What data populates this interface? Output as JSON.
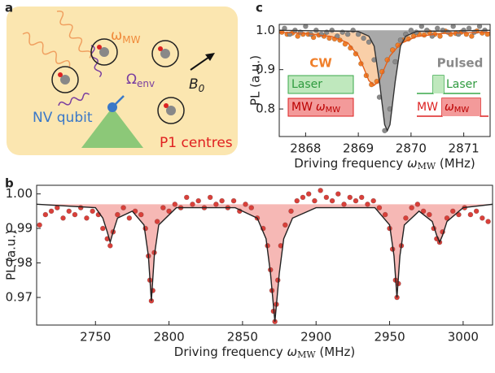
{
  "panel_labels": [
    "a",
    "b",
    "c"
  ],
  "diagram": {
    "mw_symbol": "ω",
    "mw_sub": "MW",
    "env_symbol": "Ω",
    "env_sub": "env",
    "field_symbol": "B",
    "field_sub": "0",
    "nv_label": "NV qubit",
    "p1_label": "P1 centres"
  },
  "chart_data": [
    {
      "type": "scatter",
      "y_label": "PL (a.u.)",
      "x_label": {
        "text": "Driving frequency ",
        "symbol": "ω",
        "sub": "MW",
        "unit": " (MHz)"
      },
      "xlim": [
        2867.5,
        2871.5
      ],
      "ylim": [
        0.73,
        1.015
      ],
      "xticks": [
        2868,
        2869,
        2870,
        2871
      ],
      "yticks": [
        0.8,
        0.9,
        {
          "value": 1,
          "label": "1.0"
        }
      ],
      "insets": [
        {
          "laser": "Laser",
          "mw": "MW",
          "symbol": "ω",
          "sub": "MW"
        },
        {
          "laser": "Laser",
          "mw": "MW",
          "symbol": "ω",
          "sub": "MW"
        }
      ],
      "series": [
        {
          "name": "CW",
          "color": "#f07f2a",
          "x": [
            2867.55,
            2867.65,
            2867.75,
            2867.85,
            2867.95,
            2868.05,
            2868.15,
            2868.25,
            2868.35,
            2868.45,
            2868.55,
            2868.65,
            2868.75,
            2868.85,
            2868.95,
            2869.05,
            2869.15,
            2869.25,
            2869.35,
            2869.45,
            2869.55,
            2869.65,
            2869.75,
            2869.85,
            2869.95,
            2870.05,
            2870.15,
            2870.25,
            2870.35,
            2870.45,
            2870.55,
            2870.65,
            2870.75,
            2870.85,
            2870.95,
            2871.05,
            2871.15,
            2871.25,
            2871.35,
            2871.45
          ],
          "values": [
            0.995,
            0.99,
            0.993,
            0.985,
            0.99,
            0.99,
            0.982,
            0.988,
            0.985,
            0.98,
            0.978,
            0.975,
            0.965,
            0.955,
            0.94,
            0.915,
            0.885,
            0.862,
            0.87,
            0.895,
            0.925,
            0.95,
            0.962,
            0.975,
            0.978,
            0.985,
            0.99,
            0.988,
            0.995,
            0.99,
            0.985,
            0.998,
            0.99,
            0.992,
            0.995,
            0.99,
            0.985,
            0.998,
            0.993,
            0.99
          ],
          "fit": {
            "color": "#e4601a",
            "fill_color": "#f9cfa8",
            "x": [
              2867.5,
              2868.0,
              2868.5,
              2868.8,
              2869.0,
              2869.1,
              2869.2,
              2869.3,
              2869.4,
              2869.5,
              2869.6,
              2869.8,
              2870.1,
              2870.6,
              2871.5
            ],
            "values": [
              0.995,
              0.992,
              0.984,
              0.968,
              0.935,
              0.905,
              0.872,
              0.86,
              0.872,
              0.905,
              0.935,
              0.966,
              0.984,
              0.992,
              0.995
            ]
          }
        },
        {
          "name": "Pulsed",
          "color": "#8a8a8a",
          "x": [
            2867.6,
            2867.7,
            2867.8,
            2867.9,
            2868.0,
            2868.1,
            2868.2,
            2868.3,
            2868.4,
            2868.5,
            2868.6,
            2868.7,
            2868.8,
            2868.9,
            2869.0,
            2869.1,
            2869.2,
            2869.3,
            2869.4,
            2869.5,
            2869.6,
            2869.7,
            2869.8,
            2869.9,
            2870.0,
            2870.1,
            2870.2,
            2870.3,
            2870.4,
            2870.5,
            2870.6,
            2870.7,
            2870.8,
            2870.9,
            2871.0,
            2871.1,
            2871.2,
            2871.3,
            2871.4
          ],
          "values": [
            1.005,
            0.99,
            1.0,
            0.995,
            1.01,
            0.99,
            1.0,
            0.99,
            0.995,
            1.0,
            0.985,
            0.995,
            0.99,
            1.0,
            0.99,
            0.98,
            0.97,
            0.925,
            0.83,
            0.745,
            0.8,
            0.92,
            0.975,
            0.99,
            1.0,
            0.995,
            1.01,
            1.0,
            0.985,
            1.005,
            1.0,
            0.995,
            1.01,
            0.99,
            1.0,
            1.005,
            0.995,
            1.01,
            1.0
          ],
          "fit": {
            "color": "#333333",
            "fill_color": "#a9a9a9",
            "x": [
              2867.5,
              2869.0,
              2869.2,
              2869.3,
              2869.4,
              2869.5,
              2869.55,
              2869.6,
              2869.7,
              2869.8,
              2869.9,
              2870.1,
              2871.5
            ],
            "values": [
              1.0,
              0.997,
              0.985,
              0.96,
              0.87,
              0.76,
              0.745,
              0.76,
              0.87,
              0.96,
              0.985,
              0.997,
              1.0
            ]
          }
        }
      ]
    },
    {
      "type": "scatter",
      "y_label": "PL (a.u.)",
      "x_label": {
        "text": "Driving frequency ",
        "symbol": "ω",
        "sub": "MW",
        "unit": " (MHz)"
      },
      "xlim": [
        2710,
        3020
      ],
      "ylim": [
        0.962,
        1.0025
      ],
      "xticks": [
        2750,
        2800,
        2850,
        2900,
        2950,
        3000
      ],
      "yticks": [
        0.97,
        0.98,
        0.99,
        {
          "value": 1,
          "label": "1.00"
        }
      ],
      "series": [
        {
          "color": "#d9403a",
          "x": [
            2712,
            2716,
            2720,
            2724,
            2728,
            2732,
            2736,
            2740,
            2744,
            2748,
            2752,
            2755,
            2758,
            2760,
            2762,
            2765,
            2769,
            2773,
            2777,
            2781,
            2784,
            2786,
            2787,
            2788,
            2789,
            2790,
            2792,
            2796,
            2800,
            2804,
            2808,
            2812,
            2816,
            2820,
            2824,
            2828,
            2832,
            2836,
            2840,
            2844,
            2848,
            2852,
            2856,
            2860,
            2864,
            2867,
            2869,
            2870,
            2871,
            2872,
            2873,
            2874,
            2876,
            2879,
            2883,
            2887,
            2891,
            2895,
            2899,
            2903,
            2907,
            2911,
            2915,
            2919,
            2923,
            2927,
            2931,
            2935,
            2939,
            2943,
            2947,
            2950,
            2952,
            2954,
            2955,
            2956,
            2958,
            2961,
            2965,
            2969,
            2973,
            2977,
            2980,
            2982,
            2984,
            2986,
            2989,
            2993,
            2997,
            3001,
            3005,
            3009,
            3013,
            3017
          ],
          "values": [
            0.991,
            0.994,
            0.995,
            0.996,
            0.993,
            0.995,
            0.994,
            0.996,
            0.993,
            0.995,
            0.994,
            0.99,
            0.987,
            0.985,
            0.989,
            0.994,
            0.996,
            0.993,
            0.995,
            0.994,
            0.99,
            0.982,
            0.975,
            0.969,
            0.972,
            0.983,
            0.992,
            0.996,
            0.995,
            0.997,
            0.996,
            0.999,
            0.997,
            0.998,
            0.996,
            0.999,
            0.997,
            0.998,
            0.996,
            0.998,
            0.995,
            0.997,
            0.996,
            0.993,
            0.99,
            0.985,
            0.978,
            0.972,
            0.966,
            0.963,
            0.968,
            0.975,
            0.985,
            0.991,
            0.995,
            0.998,
            0.999,
            1.0,
            0.998,
            1.001,
            0.999,
            0.998,
            1.0,
            0.997,
            0.999,
            0.998,
            0.999,
            0.997,
            0.998,
            0.996,
            0.994,
            0.99,
            0.984,
            0.975,
            0.97,
            0.974,
            0.985,
            0.993,
            0.996,
            0.997,
            0.995,
            0.994,
            0.99,
            0.987,
            0.986,
            0.989,
            0.993,
            0.995,
            0.994,
            0.996,
            0.994,
            0.995,
            0.993,
            0.992
          ],
          "fit": {
            "color": "#222222",
            "fill_color": "#f6b8b5",
            "x": [
              2710,
              2750,
              2755,
              2758,
              2760,
              2762,
              2765,
              2775,
              2783,
              2786,
              2788,
              2790,
              2793,
              2805,
              2845,
              2860,
              2866,
              2869,
              2872,
              2875,
              2878,
              2884,
              2900,
              2940,
              2950,
              2953,
              2955,
              2957,
              2960,
              2970,
              2979,
              2982,
              2984,
              2986,
              2989,
              3000,
              3020
            ],
            "values": [
              0.997,
              0.996,
              0.993,
              0.989,
              0.986,
              0.989,
              0.993,
              0.995,
              0.991,
              0.982,
              0.969,
              0.982,
              0.991,
              0.996,
              0.996,
              0.993,
              0.987,
              0.977,
              0.963,
              0.977,
              0.987,
              0.993,
              0.996,
              0.996,
              0.991,
              0.982,
              0.97,
              0.982,
              0.991,
              0.995,
              0.992,
              0.988,
              0.986,
              0.988,
              0.992,
              0.996,
              0.997
            ]
          }
        }
      ]
    }
  ]
}
